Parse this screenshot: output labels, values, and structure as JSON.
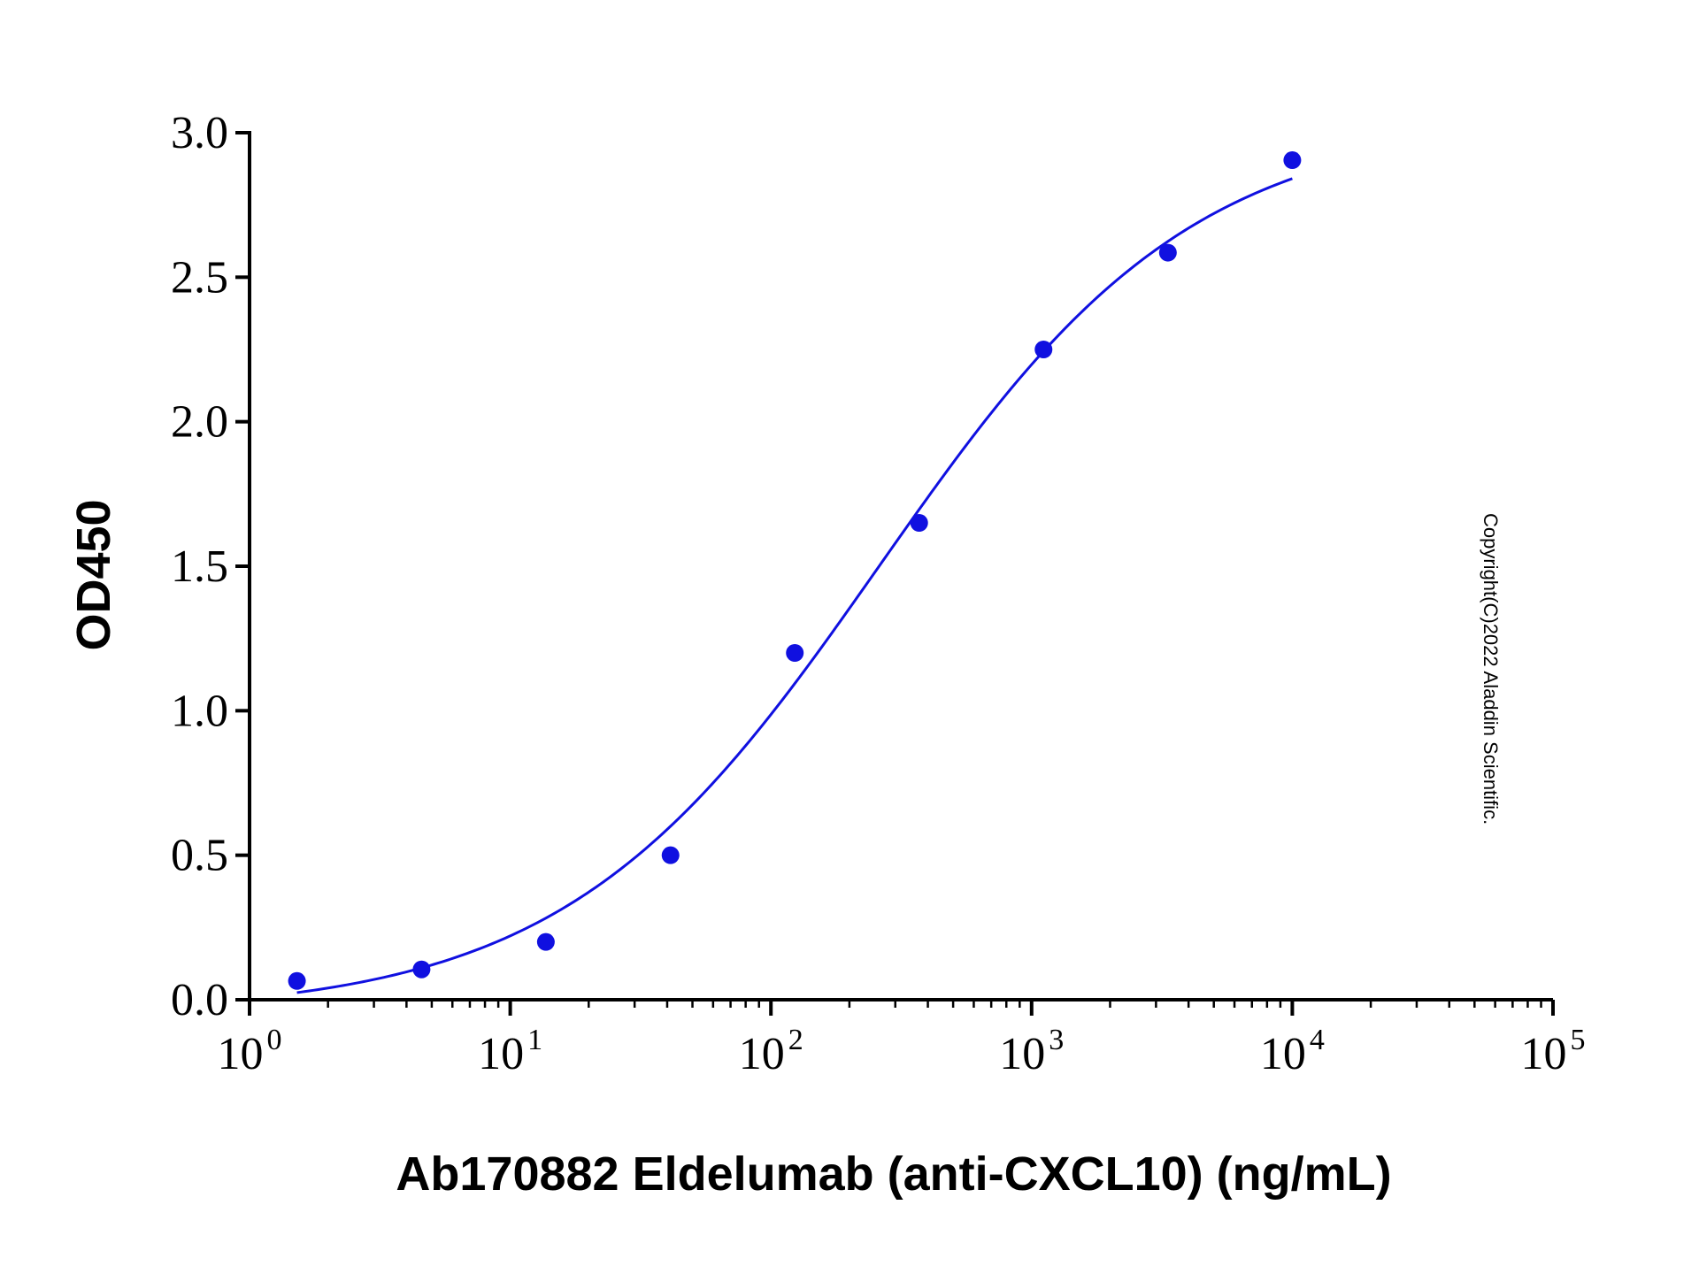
{
  "chart_data": {
    "type": "scatter",
    "title": "",
    "xlabel": "Ab170882 Eldelumab (anti-CXCL10) (ng/mL)",
    "ylabel": "OD450",
    "xscale": "log10",
    "xlim": [
      1,
      100000
    ],
    "ylim": [
      0,
      3.0
    ],
    "x_ticks": [
      {
        "base": "10",
        "exp": "0"
      },
      {
        "base": "10",
        "exp": "1"
      },
      {
        "base": "10",
        "exp": "2"
      },
      {
        "base": "10",
        "exp": "3"
      },
      {
        "base": "10",
        "exp": "4"
      },
      {
        "base": "10",
        "exp": "5"
      }
    ],
    "y_ticks": [
      "0.0",
      "0.5",
      "1.0",
      "1.5",
      "2.0",
      "2.5",
      "3.0"
    ],
    "grid": false,
    "color": "#1010e0",
    "points": {
      "x": [
        1.52,
        4.57,
        13.7,
        41.2,
        123.5,
        370.4,
        1111,
        3333,
        10000
      ],
      "y": [
        0.065,
        0.105,
        0.2,
        0.5,
        1.2,
        1.65,
        2.25,
        2.585,
        2.905
      ]
    },
    "fit_curve": {
      "model": "4PL",
      "bottom": -0.05,
      "top": 3.05,
      "ec50": 260,
      "hill": 0.72,
      "x_range": [
        1.52,
        10000
      ]
    },
    "annotation": "Copyright(C)2022 Aladdin Scientific."
  }
}
